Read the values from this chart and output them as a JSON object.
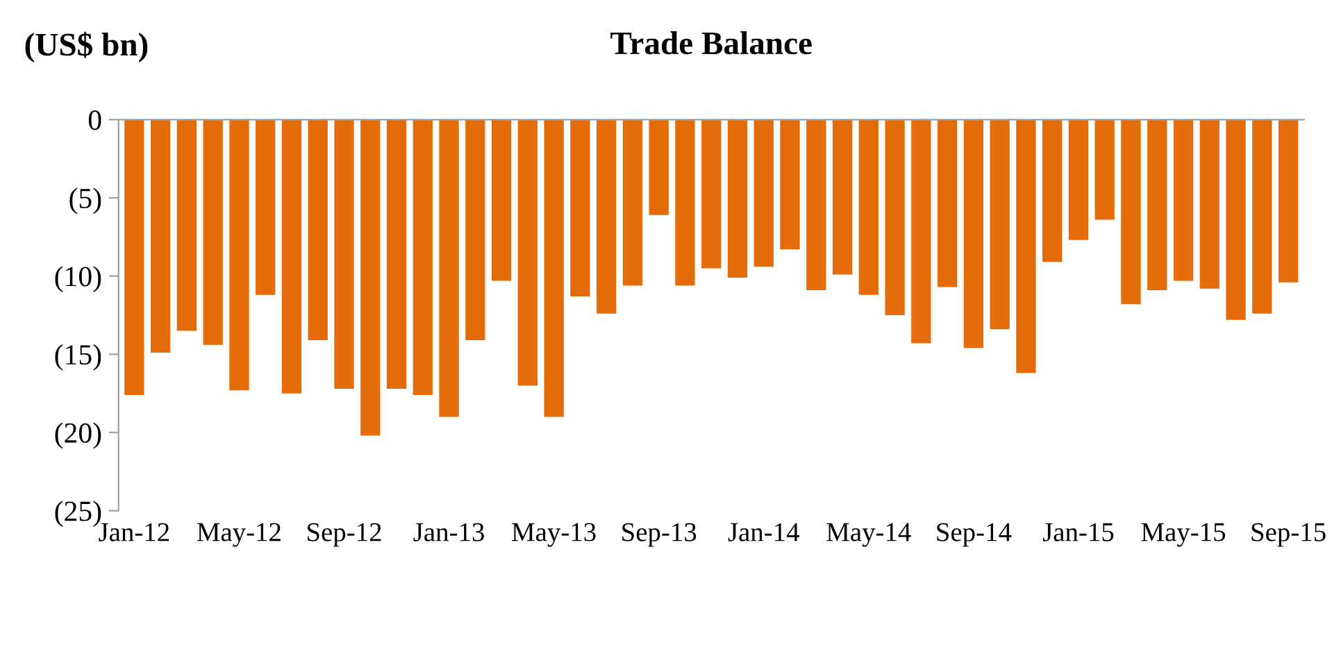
{
  "chart_data": {
    "type": "bar",
    "title": "Trade Balance",
    "ylabel": "(US$ bn)",
    "categories": [
      "Jan-12",
      null,
      null,
      null,
      "May-12",
      null,
      null,
      null,
      "Sep-12",
      null,
      null,
      null,
      "Jan-13",
      null,
      null,
      null,
      "May-13",
      null,
      null,
      null,
      "Sep-13",
      null,
      null,
      null,
      "Jan-14",
      null,
      null,
      null,
      "May-14",
      null,
      null,
      null,
      "Sep-14",
      null,
      null,
      null,
      "Jan-15",
      null,
      null,
      null,
      "May-15",
      null,
      null,
      null,
      "Sep-15"
    ],
    "values": [
      -17.6,
      -14.9,
      -13.5,
      -14.4,
      -17.3,
      -11.2,
      -17.5,
      -14.1,
      -17.2,
      -20.2,
      -17.2,
      -17.6,
      -19.0,
      -14.1,
      -10.3,
      -17.0,
      -19.0,
      -11.3,
      -12.4,
      -10.6,
      -6.1,
      -10.6,
      -9.5,
      -10.1,
      -9.4,
      -8.3,
      -10.9,
      -9.9,
      -11.2,
      -12.5,
      -14.3,
      -10.7,
      -14.6,
      -13.4,
      -16.2,
      -9.1,
      -7.7,
      -6.4,
      -11.8,
      -10.9,
      -10.3,
      -10.8,
      -12.8,
      -12.4,
      -10.4
    ],
    "color": "#e46c0a",
    "ylim": [
      -25,
      0
    ],
    "yticks": [
      {
        "value": -25,
        "label": "(25)"
      },
      {
        "value": -20,
        "label": "(20)"
      },
      {
        "value": -15,
        "label": "(15)"
      },
      {
        "value": -10,
        "label": "(10)"
      },
      {
        "value": -5,
        "label": "(5)"
      },
      0
    ],
    "grid": false,
    "legend": false
  }
}
